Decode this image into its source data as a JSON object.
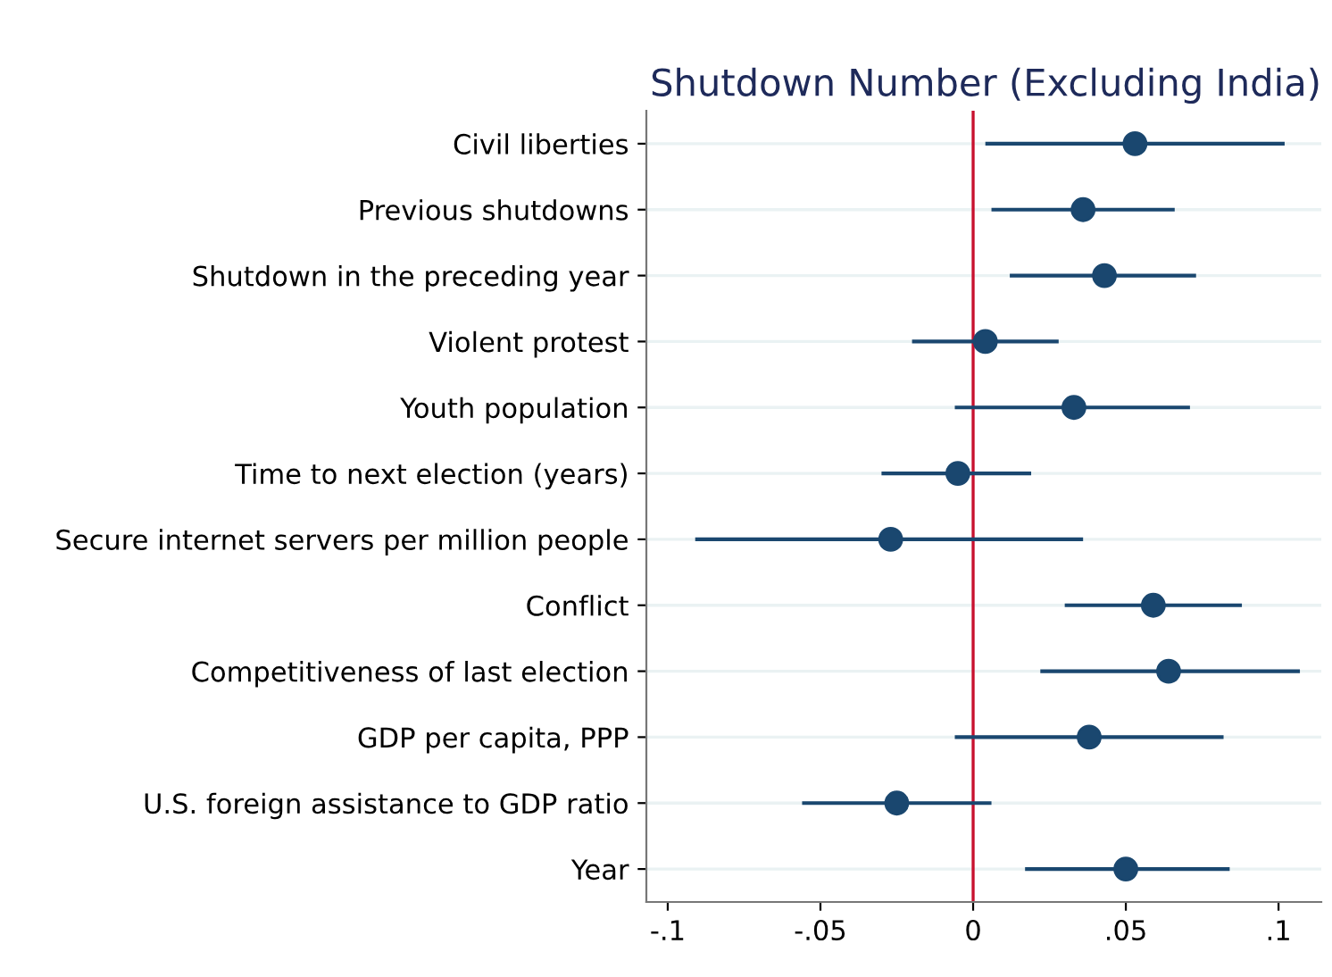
{
  "chart_data": {
    "type": "scatter",
    "orientation": "horizontal",
    "title": "Shutdown Number (Excluding India)",
    "categories": [
      "Civil liberties",
      "Previous shutdowns",
      "Shutdown in the preceding year",
      "Violent protest",
      "Youth population",
      "Time to next election (years)",
      "Secure internet servers per million people",
      "Conflict",
      "Competitiveness of last election",
      "GDP per capita, PPP",
      "U.S. foreign assistance to GDP ratio",
      "Year"
    ],
    "series": [
      {
        "color": "#1a476f",
        "values": [
          0.053,
          0.036,
          0.043,
          0.004,
          0.033,
          -0.005,
          -0.027,
          0.059,
          0.064,
          0.038,
          -0.025,
          0.05
        ],
        "errors": [
          [
            0.004,
            0.102
          ],
          [
            0.006,
            0.066
          ],
          [
            0.012,
            0.073
          ],
          [
            -0.02,
            0.028
          ],
          [
            -0.006,
            0.071
          ],
          [
            -0.03,
            0.019
          ],
          [
            -0.091,
            0.036
          ],
          [
            0.03,
            0.088
          ],
          [
            0.022,
            0.107
          ],
          [
            -0.006,
            0.082
          ],
          [
            -0.056,
            0.006
          ],
          [
            0.017,
            0.084
          ]
        ]
      }
    ],
    "xlim": [
      -0.107,
      0.114
    ],
    "xticks": [
      {
        "value": -0.1,
        "label": "-.1"
      },
      {
        "value": -0.05,
        "label": "-.05"
      },
      0,
      {
        "value": 0.05,
        "label": ".05"
      },
      {
        "value": 0.1,
        "label": ".1"
      }
    ],
    "ref_lines": [
      {
        "axis": "x",
        "value": 0,
        "color": "#c8102e"
      }
    ],
    "grid": "y",
    "marker": "circle",
    "legend": false
  }
}
